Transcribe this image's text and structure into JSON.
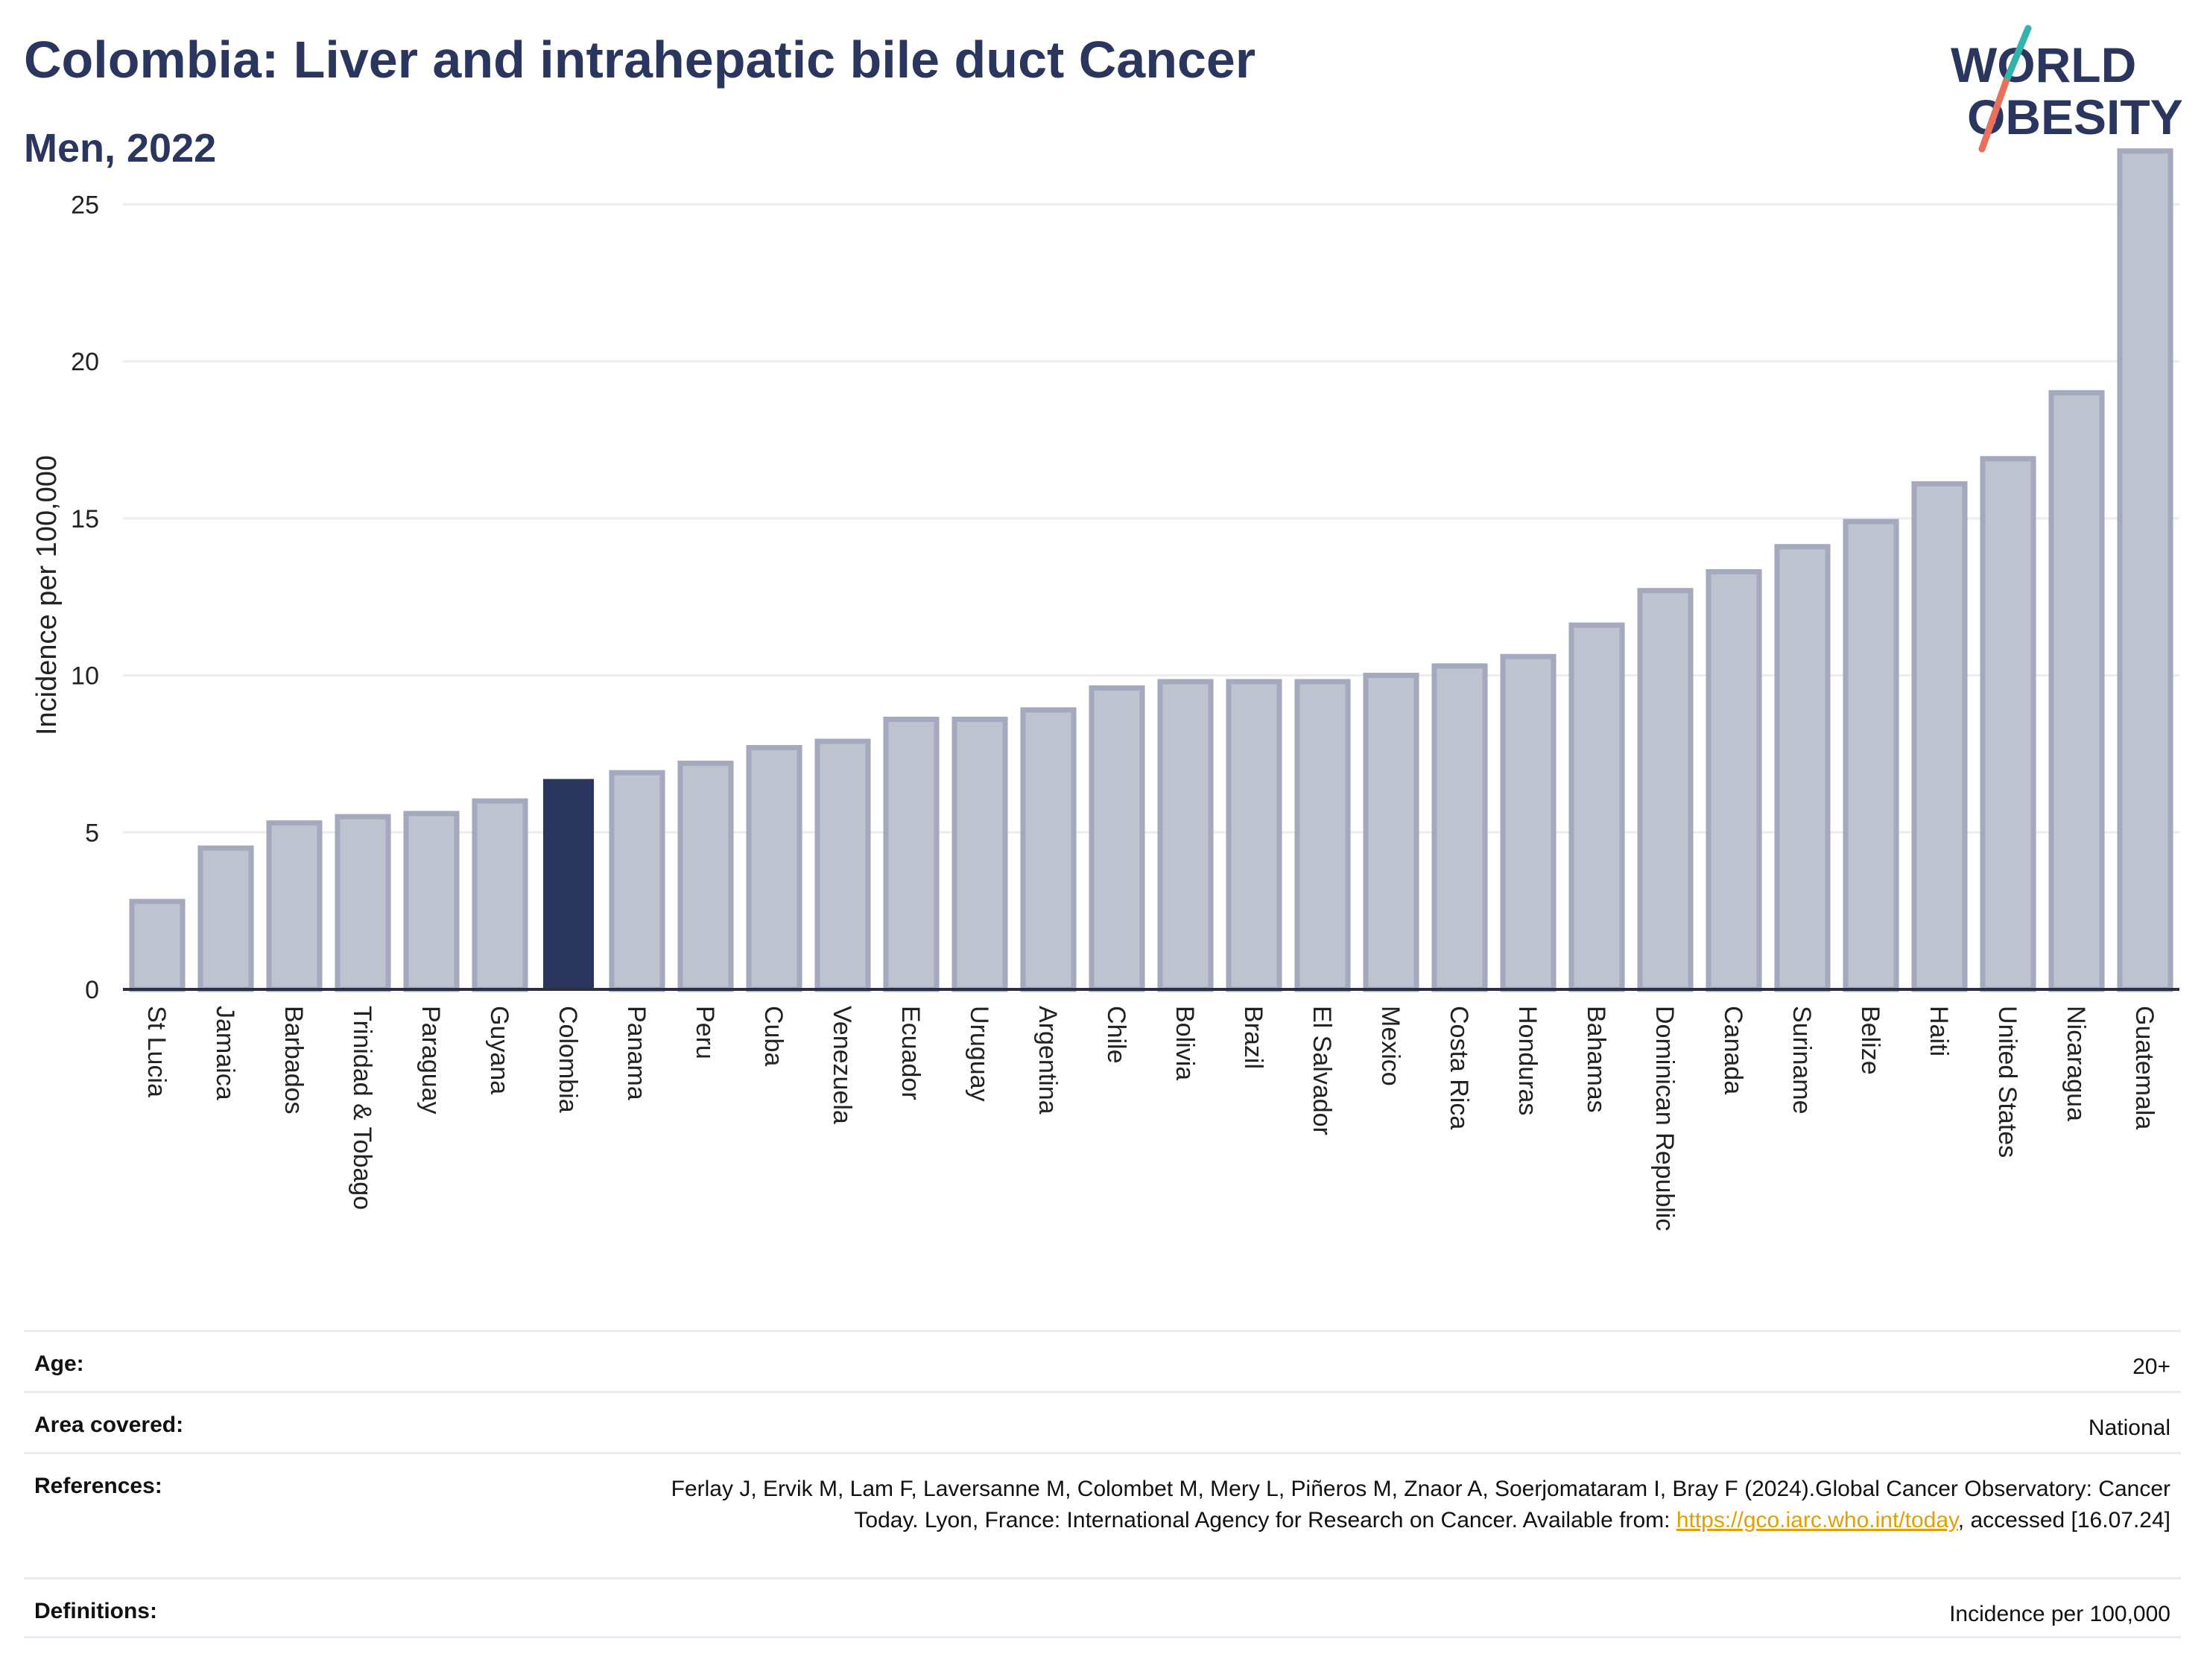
{
  "header": {
    "title": "Colombia: Liver and intrahepatic bile duct Cancer",
    "subtitle": "Men, 2022"
  },
  "logo": {
    "line1": "WORLD",
    "line2": "OBESITY",
    "icon": "world-obesity-logo"
  },
  "colors": {
    "bar": "#bfc2cf",
    "bar_border": "#a5a9bd",
    "highlight": "#2b365f",
    "title": "#2b365f",
    "grid": "#ebedf2",
    "link": "#e0a100"
  },
  "chart_data": {
    "type": "bar",
    "title": "Colombia: Liver and intrahepatic bile duct Cancer",
    "subtitle": "Men, 2022",
    "xlabel": "",
    "ylabel": "Incidence per 100,000",
    "ylim": [
      0,
      27
    ],
    "yticks": [
      0,
      5,
      10,
      15,
      20,
      25
    ],
    "grid": true,
    "highlight": "Colombia",
    "categories": [
      "St Lucia",
      "Jamaica",
      "Barbados",
      "Trinidad & Tobago",
      "Paraguay",
      "Guyana",
      "Colombia",
      "Panama",
      "Peru",
      "Cuba",
      "Venezuela",
      "Ecuador",
      "Uruguay",
      "Argentina",
      "Chile",
      "Bolivia",
      "Brazil",
      "El Salvador",
      "Mexico",
      "Costa Rica",
      "Honduras",
      "Bahamas",
      "Dominican Republic",
      "Canada",
      "Suriname",
      "Belize",
      "Haiti",
      "United States",
      "Nicaragua",
      "Guatemala"
    ],
    "values": [
      2.8,
      4.5,
      5.3,
      5.5,
      5.6,
      6.0,
      6.7,
      6.9,
      7.2,
      7.7,
      7.9,
      8.6,
      8.6,
      8.9,
      9.6,
      9.8,
      9.8,
      9.8,
      10.0,
      10.3,
      10.6,
      11.6,
      12.7,
      13.3,
      14.1,
      14.9,
      16.1,
      16.9,
      19.0,
      26.7
    ]
  },
  "meta": [
    {
      "label": "Age:",
      "value": "20+"
    },
    {
      "label": "Area covered:",
      "value": "National"
    },
    {
      "label": "References:",
      "value_pre": "Ferlay J, Ervik M, Lam F, Laversanne M, Colombet M, Mery L, Piñeros M, Znaor A, Soerjomataram I, Bray F (2024).Global Cancer Observatory: Cancer Today. Lyon, France: International Agency for Research on Cancer. Available from: ",
      "link": "https://gco.iarc.who.int/today",
      "value_post": ", accessed [16.07.24]"
    },
    {
      "label": "Definitions:",
      "value": "Incidence per 100,000"
    }
  ]
}
